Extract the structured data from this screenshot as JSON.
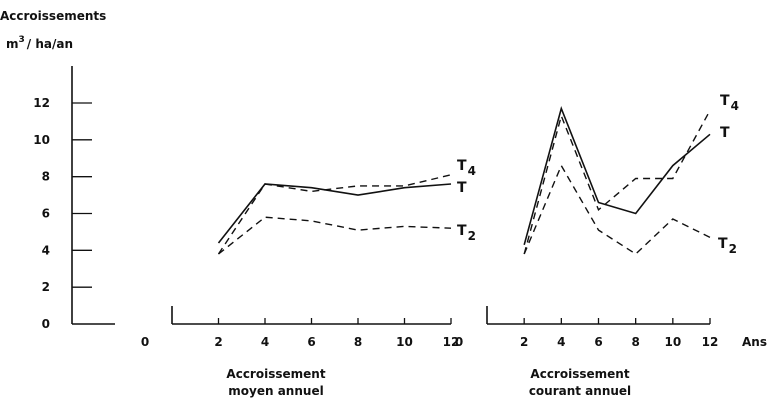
{
  "y_axis": {
    "label_line1": "Accroissements",
    "label_line2_base": "m",
    "label_line2_sup": "3",
    "label_line2_rest": "/ ha/an",
    "ticks": [
      "0",
      "2",
      "4",
      "6",
      "8",
      "10",
      "12"
    ]
  },
  "x_axis": {
    "label": "Ans"
  },
  "chart_data": [
    {
      "type": "line",
      "title": "Accroissement moyen annuel",
      "title_lines": [
        "Accroissement",
        "moyen annuel"
      ],
      "x": [
        2,
        4,
        6,
        8,
        10,
        12
      ],
      "x_ticks": [
        "0",
        "2",
        "4",
        "6",
        "8",
        "10",
        "12"
      ],
      "xlim": [
        0,
        12
      ],
      "ylim": [
        0,
        12
      ],
      "xlabel": "",
      "ylabel": "Accroissements m3/ha/an",
      "grid": false,
      "series": [
        {
          "name": "T",
          "style": "solid",
          "values": [
            4.4,
            7.6,
            7.4,
            7.0,
            7.4,
            7.6
          ]
        },
        {
          "name": "T4",
          "label_base": "T",
          "label_sub": "4",
          "style": "dashed",
          "values": [
            3.8,
            7.6,
            7.2,
            7.5,
            7.5,
            8.1
          ]
        },
        {
          "name": "T2",
          "label_base": "T",
          "label_sub": "2",
          "style": "dashed",
          "values": [
            3.8,
            5.8,
            5.6,
            5.1,
            5.3,
            5.2
          ]
        }
      ]
    },
    {
      "type": "line",
      "title": "Accroissement courant annuel",
      "title_lines": [
        "Accroissement",
        "courant annuel"
      ],
      "x": [
        2,
        4,
        6,
        8,
        10,
        12
      ],
      "x_ticks": [
        "0",
        "2",
        "4",
        "6",
        "8",
        "10",
        "12"
      ],
      "xlim": [
        0,
        12
      ],
      "ylim": [
        0,
        12
      ],
      "xlabel": "Ans",
      "ylabel": "Accroissements m3/ha/an",
      "grid": false,
      "series": [
        {
          "name": "T",
          "style": "solid",
          "values": [
            4.3,
            11.7,
            6.6,
            6.0,
            8.6,
            10.3
          ]
        },
        {
          "name": "T4",
          "label_base": "T",
          "label_sub": "4",
          "style": "dashed",
          "values": [
            3.8,
            11.3,
            6.2,
            7.9,
            7.9,
            11.6
          ]
        },
        {
          "name": "T2",
          "label_base": "T",
          "label_sub": "2",
          "style": "dashed",
          "values": [
            3.8,
            8.6,
            5.1,
            3.8,
            5.7,
            4.7
          ]
        }
      ]
    }
  ]
}
